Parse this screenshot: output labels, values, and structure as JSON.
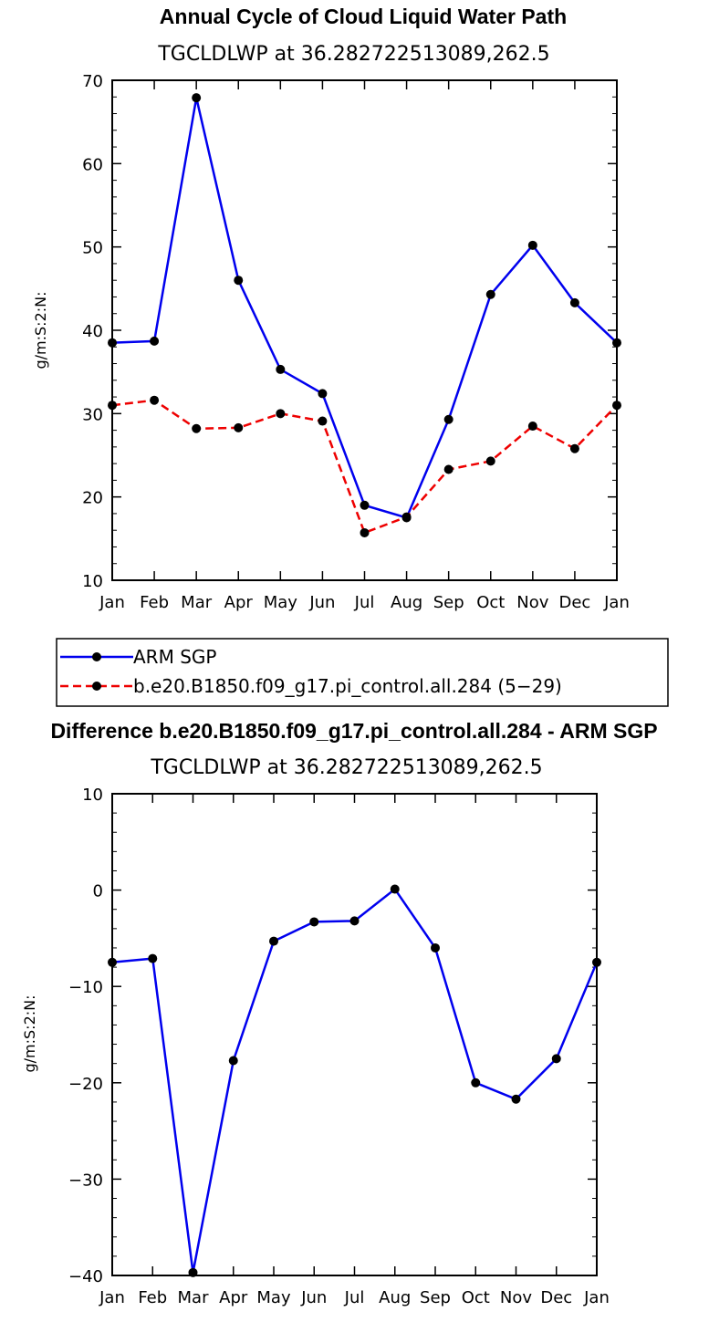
{
  "chart_data": [
    {
      "type": "line",
      "title": "Annual Cycle of Cloud Liquid Water Path",
      "subtitle": "TGCLDLWP  at 36.282722513089,262.5",
      "ylabel": "g/m:S:2:N:",
      "xlabel": "",
      "ylim": [
        10,
        70
      ],
      "yticks": [
        "10",
        "20",
        "30",
        "40",
        "50",
        "60",
        "70"
      ],
      "categories": [
        "Jan",
        "Feb",
        "Mar",
        "Apr",
        "May",
        "Jun",
        "Jul",
        "Aug",
        "Sep",
        "Oct",
        "Nov",
        "Dec",
        "Jan"
      ],
      "series": [
        {
          "name": "ARM SGP",
          "color": "#0000ee",
          "dash": "solid",
          "values": [
            38.5,
            38.7,
            67.9,
            46.0,
            35.3,
            32.4,
            19.0,
            17.5,
            29.3,
            44.3,
            50.2,
            43.3,
            38.5
          ]
        },
        {
          "name": "b.e20.B1850.f09_g17.pi_control.all.284 (5−29)",
          "color": "#ee0000",
          "dash": "dashed",
          "values": [
            31.0,
            31.6,
            28.2,
            28.3,
            30.0,
            29.1,
            15.7,
            17.6,
            23.3,
            24.3,
            28.5,
            25.8,
            31.0
          ]
        }
      ],
      "grid": false,
      "legend": "below"
    },
    {
      "type": "line",
      "title": "Difference b.e20.B1850.f09_g17.pi_control.all.284 - ARM SGP",
      "subtitle": "TGCLDLWP  at 36.282722513089,262.5",
      "ylabel": "g/m:S:2:N:",
      "xlabel": "",
      "ylim": [
        -40,
        10
      ],
      "yticks": [
        "−40",
        "−30",
        "−20",
        "−10",
        "0",
        "10"
      ],
      "categories": [
        "Jan",
        "Feb",
        "Mar",
        "Apr",
        "May",
        "Jun",
        "Jul",
        "Aug",
        "Sep",
        "Oct",
        "Nov",
        "Dec",
        "Jan"
      ],
      "series": [
        {
          "color": "#0000ee",
          "dash": "solid",
          "values": [
            -7.5,
            -7.1,
            -39.7,
            -17.7,
            -5.3,
            -3.3,
            -3.2,
            0.1,
            -6.0,
            -20.0,
            -21.7,
            -17.5,
            -7.5
          ]
        }
      ],
      "grid": false
    }
  ]
}
